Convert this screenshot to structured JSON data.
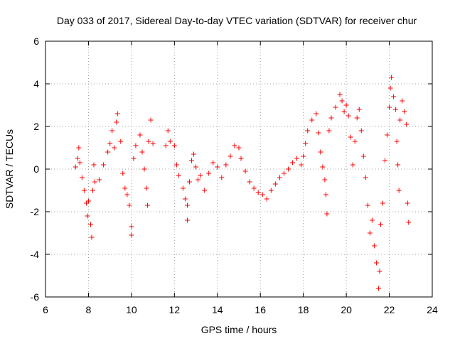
{
  "chart_data": {
    "type": "scatter",
    "title": "Day 033 of 2017, Sidereal Day-to-day VTEC variation (SDTVAR) for receiver chur",
    "xlabel": "GPS time / hours",
    "ylabel": "SDTVAR / TECUs",
    "xlim": [
      6,
      24
    ],
    "ylim": [
      -6,
      6
    ],
    "xticks": [
      6,
      8,
      10,
      12,
      14,
      16,
      18,
      20,
      22,
      24
    ],
    "yticks": [
      -6,
      -4,
      -2,
      0,
      2,
      4,
      6
    ],
    "xtick_labels": [
      "6",
      "8",
      "10",
      "12",
      "14",
      "16",
      "18",
      "20",
      "22",
      "24"
    ],
    "ytick_labels": [
      "-6",
      "-4",
      "-2",
      "0",
      "2",
      "4",
      "6"
    ],
    "grid": true,
    "marker": "+",
    "color": "#ff0000",
    "series": [
      {
        "name": "SDTVAR",
        "points": [
          [
            7.4,
            0.1
          ],
          [
            7.5,
            0.5
          ],
          [
            7.55,
            1.0
          ],
          [
            7.6,
            0.3
          ],
          [
            7.7,
            -0.4
          ],
          [
            7.8,
            -1.0
          ],
          [
            7.9,
            -1.6
          ],
          [
            7.95,
            -2.2
          ],
          [
            8.0,
            -1.5
          ],
          [
            8.1,
            -2.6
          ],
          [
            8.15,
            -3.2
          ],
          [
            8.2,
            -1.0
          ],
          [
            8.25,
            0.2
          ],
          [
            8.3,
            -0.6
          ],
          [
            8.5,
            -0.5
          ],
          [
            8.7,
            0.2
          ],
          [
            8.9,
            0.8
          ],
          [
            9.0,
            1.2
          ],
          [
            9.1,
            1.8
          ],
          [
            9.2,
            1.0
          ],
          [
            9.3,
            2.2
          ],
          [
            9.35,
            2.6
          ],
          [
            9.5,
            1.3
          ],
          [
            9.6,
            -0.2
          ],
          [
            9.7,
            -0.9
          ],
          [
            9.8,
            -1.2
          ],
          [
            9.9,
            -1.7
          ],
          [
            10.0,
            -2.7
          ],
          [
            10.0,
            -3.1
          ],
          [
            10.1,
            0.5
          ],
          [
            10.2,
            1.1
          ],
          [
            10.4,
            1.6
          ],
          [
            10.5,
            0.8
          ],
          [
            10.6,
            0.0
          ],
          [
            10.7,
            -0.9
          ],
          [
            10.75,
            -1.7
          ],
          [
            10.8,
            1.3
          ],
          [
            10.9,
            2.3
          ],
          [
            11.0,
            1.2
          ],
          [
            11.6,
            1.1
          ],
          [
            11.7,
            1.8
          ],
          [
            11.8,
            1.3
          ],
          [
            12.0,
            1.1
          ],
          [
            12.1,
            0.2
          ],
          [
            12.2,
            -0.3
          ],
          [
            12.4,
            -0.9
          ],
          [
            12.5,
            -1.4
          ],
          [
            12.6,
            -1.7
          ],
          [
            12.6,
            -2.4
          ],
          [
            12.7,
            -0.6
          ],
          [
            12.8,
            0.4
          ],
          [
            12.9,
            0.7
          ],
          [
            13.0,
            0.1
          ],
          [
            13.1,
            -0.5
          ],
          [
            13.2,
            -0.3
          ],
          [
            13.4,
            -1.0
          ],
          [
            13.6,
            -0.2
          ],
          [
            13.8,
            0.3
          ],
          [
            14.0,
            0.1
          ],
          [
            14.2,
            -0.4
          ],
          [
            14.4,
            0.2
          ],
          [
            14.6,
            0.6
          ],
          [
            14.8,
            1.1
          ],
          [
            15.0,
            1.0
          ],
          [
            15.1,
            0.5
          ],
          [
            15.3,
            -0.1
          ],
          [
            15.5,
            -0.6
          ],
          [
            15.7,
            -0.9
          ],
          [
            15.9,
            -1.1
          ],
          [
            16.1,
            -1.2
          ],
          [
            16.3,
            -1.4
          ],
          [
            16.5,
            -1.0
          ],
          [
            16.7,
            -0.7
          ],
          [
            16.9,
            -0.4
          ],
          [
            17.1,
            -0.2
          ],
          [
            17.3,
            0.0
          ],
          [
            17.5,
            0.3
          ],
          [
            17.7,
            0.5
          ],
          [
            17.9,
            0.2
          ],
          [
            18.0,
            0.6
          ],
          [
            18.1,
            1.2
          ],
          [
            18.2,
            1.8
          ],
          [
            18.4,
            2.3
          ],
          [
            18.6,
            2.6
          ],
          [
            18.7,
            1.7
          ],
          [
            18.8,
            0.8
          ],
          [
            18.9,
            0.1
          ],
          [
            19.0,
            -0.5
          ],
          [
            19.05,
            -1.2
          ],
          [
            19.1,
            -2.1
          ],
          [
            19.2,
            1.8
          ],
          [
            19.3,
            2.4
          ],
          [
            19.5,
            2.9
          ],
          [
            19.7,
            3.5
          ],
          [
            19.8,
            3.2
          ],
          [
            19.9,
            2.7
          ],
          [
            20.0,
            3.0
          ],
          [
            20.1,
            2.5
          ],
          [
            20.2,
            1.5
          ],
          [
            20.3,
            0.2
          ],
          [
            20.4,
            1.3
          ],
          [
            20.5,
            2.4
          ],
          [
            20.6,
            2.8
          ],
          [
            20.7,
            1.8
          ],
          [
            20.8,
            0.6
          ],
          [
            20.9,
            -0.4
          ],
          [
            21.0,
            -1.7
          ],
          [
            21.1,
            -3.0
          ],
          [
            21.2,
            -2.4
          ],
          [
            21.3,
            -3.6
          ],
          [
            21.4,
            -4.4
          ],
          [
            21.5,
            -5.6
          ],
          [
            21.55,
            -4.8
          ],
          [
            21.6,
            -2.6
          ],
          [
            21.7,
            -1.6
          ],
          [
            21.8,
            0.4
          ],
          [
            21.9,
            1.6
          ],
          [
            22.0,
            2.9
          ],
          [
            22.05,
            3.8
          ],
          [
            22.1,
            4.3
          ],
          [
            22.2,
            3.4
          ],
          [
            22.3,
            2.8
          ],
          [
            22.35,
            1.3
          ],
          [
            22.4,
            0.2
          ],
          [
            22.45,
            -1.0
          ],
          [
            22.5,
            2.3
          ],
          [
            22.6,
            3.2
          ],
          [
            22.7,
            2.7
          ],
          [
            22.8,
            2.1
          ],
          [
            22.85,
            -1.6
          ],
          [
            22.9,
            -2.5
          ]
        ]
      }
    ]
  }
}
